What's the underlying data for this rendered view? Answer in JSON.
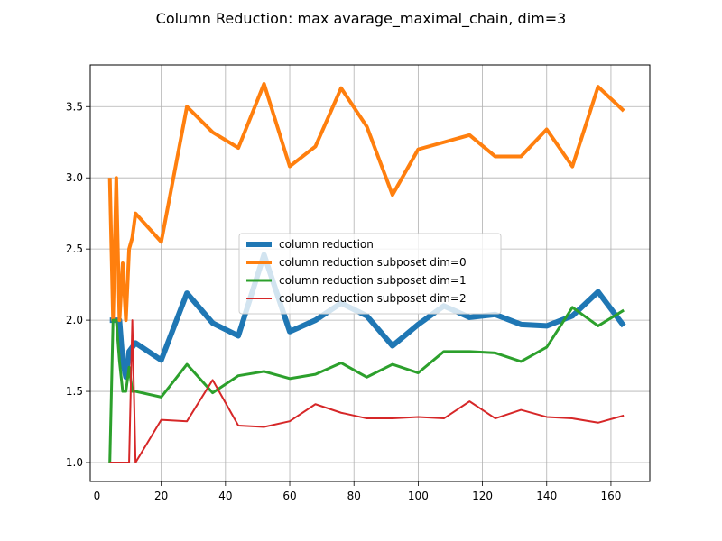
{
  "chart_data": {
    "type": "line",
    "title": "Column Reduction: max avarage_maximal_chain, dim=3",
    "xlabel": "",
    "ylabel": "",
    "xlim": [
      -2.1,
      172.1
    ],
    "ylim": [
      0.867,
      3.793
    ],
    "xticks": [
      0,
      20,
      40,
      60,
      80,
      100,
      120,
      140,
      160
    ],
    "yticks": [
      1.0,
      1.5,
      2.0,
      2.5,
      3.0,
      3.5
    ],
    "ytick_labels": [
      "1.0",
      "1.5",
      "2.0",
      "2.5",
      "3.0",
      "3.5"
    ],
    "grid": true,
    "legend_placement": "center",
    "series": [
      {
        "name": "column reduction",
        "color": "#1f77b4",
        "width": 6,
        "x": [
          4,
          5,
          6,
          7,
          8,
          9,
          10,
          11,
          12,
          20,
          28,
          36,
          44,
          52,
          60,
          68,
          76,
          84,
          92,
          100,
          108,
          116,
          124,
          132,
          140,
          148,
          156,
          164
        ],
        "y": [
          2.0,
          2.0,
          2.0,
          2.0,
          1.71,
          1.6,
          1.78,
          1.81,
          1.84,
          1.72,
          2.19,
          1.98,
          1.89,
          2.46,
          1.92,
          2.0,
          2.12,
          2.03,
          1.82,
          1.97,
          2.1,
          2.02,
          2.04,
          1.97,
          1.96,
          2.03,
          2.2,
          1.96
        ]
      },
      {
        "name": "column reduction subposet dim=0",
        "color": "#ff7f0e",
        "width": 4,
        "x": [
          4,
          5,
          6,
          7,
          8,
          9,
          10,
          11,
          12,
          20,
          28,
          36,
          44,
          52,
          60,
          68,
          76,
          84,
          92,
          100,
          108,
          116,
          124,
          132,
          140,
          148,
          156,
          164
        ],
        "y": [
          3.0,
          2.0,
          3.0,
          2.0,
          2.4,
          2.0,
          2.5,
          2.58,
          2.75,
          2.55,
          3.5,
          3.32,
          3.21,
          3.66,
          3.08,
          3.22,
          3.63,
          3.36,
          2.88,
          3.2,
          3.25,
          3.3,
          3.15,
          3.15,
          3.34,
          3.08,
          3.64,
          3.47
        ]
      },
      {
        "name": "column reduction subposet dim=1",
        "color": "#2ca02c",
        "width": 3,
        "x": [
          4,
          5,
          6,
          7,
          8,
          9,
          10,
          11,
          12,
          20,
          28,
          36,
          44,
          52,
          60,
          68,
          76,
          84,
          92,
          100,
          108,
          116,
          124,
          132,
          140,
          148,
          156,
          164
        ],
        "y": [
          1.0,
          2.0,
          2.0,
          1.71,
          1.5,
          1.5,
          1.67,
          1.5,
          1.5,
          1.46,
          1.69,
          1.49,
          1.61,
          1.64,
          1.59,
          1.62,
          1.7,
          1.6,
          1.69,
          1.63,
          1.78,
          1.78,
          1.77,
          1.71,
          1.81,
          2.09,
          1.96,
          2.07
        ]
      },
      {
        "name": "column reduction subposet dim=2",
        "color": "#d62728",
        "width": 2,
        "x": [
          4,
          5,
          6,
          7,
          8,
          9,
          10,
          11,
          12,
          20,
          28,
          36,
          44,
          52,
          60,
          68,
          76,
          84,
          92,
          100,
          108,
          116,
          124,
          132,
          140,
          148,
          156,
          164
        ],
        "y": [
          1.0,
          1.0,
          1.0,
          1.0,
          1.0,
          1.0,
          1.0,
          2.0,
          1.0,
          1.3,
          1.29,
          1.58,
          1.26,
          1.25,
          1.29,
          1.41,
          1.35,
          1.31,
          1.31,
          1.32,
          1.31,
          1.43,
          1.31,
          1.37,
          1.32,
          1.31,
          1.28,
          1.33
        ]
      }
    ]
  }
}
